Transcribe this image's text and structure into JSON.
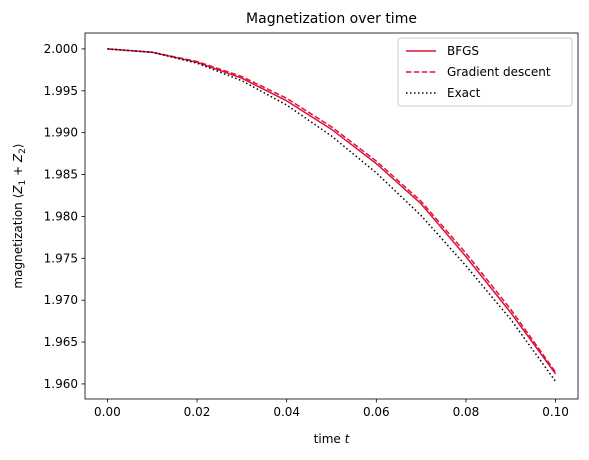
{
  "chart_data": {
    "type": "line",
    "title": "Magnetization over time",
    "xlabel_prefix": "time ",
    "xlabel_var": "t",
    "ylabel_prefix": "magnetization ⟨",
    "ylabel_z1": "Z",
    "ylabel_sub1": "1",
    "ylabel_plus": " + ",
    "ylabel_z2": "Z",
    "ylabel_sub2": "2",
    "ylabel_suffix": "⟩",
    "xlim": [
      -0.005,
      0.105
    ],
    "ylim": [
      1.9582,
      2.0019
    ],
    "xticks": [
      0.0,
      0.02,
      0.04,
      0.06,
      0.08,
      0.1
    ],
    "xtick_labels": [
      "0.00",
      "0.02",
      "0.04",
      "0.06",
      "0.08",
      "0.10"
    ],
    "yticks": [
      1.96,
      1.965,
      1.97,
      1.975,
      1.98,
      1.985,
      1.99,
      1.995,
      2.0
    ],
    "ytick_labels": [
      "1.960",
      "1.965",
      "1.970",
      "1.975",
      "1.980",
      "1.985",
      "1.990",
      "1.995",
      "2.000"
    ],
    "grid": false,
    "legend_position": "top-right",
    "x": [
      0.0,
      0.01,
      0.02,
      0.03,
      0.04,
      0.05,
      0.06,
      0.07,
      0.08,
      0.09,
      0.1
    ],
    "series": [
      {
        "name": "BFGS",
        "style": "solid",
        "color": "#dc143c",
        "values": [
          2.0,
          1.9996,
          1.9984,
          1.9965,
          1.9938,
          1.9904,
          1.9863,
          1.9815,
          1.9752,
          1.9685,
          1.9612
        ]
      },
      {
        "name": "Gradient descent",
        "style": "dashed",
        "color": "#dc143c",
        "values": [
          2.0,
          1.9996,
          1.9985,
          1.9967,
          1.9941,
          1.9907,
          1.9866,
          1.9818,
          1.9756,
          1.9689,
          1.9614
        ]
      },
      {
        "name": "Exact",
        "style": "dotted",
        "color": "#000000",
        "values": [
          2.0,
          1.9996,
          1.9983,
          1.9962,
          1.9933,
          1.9896,
          1.9852,
          1.9801,
          1.9741,
          1.9677,
          1.9603
        ]
      }
    ]
  }
}
